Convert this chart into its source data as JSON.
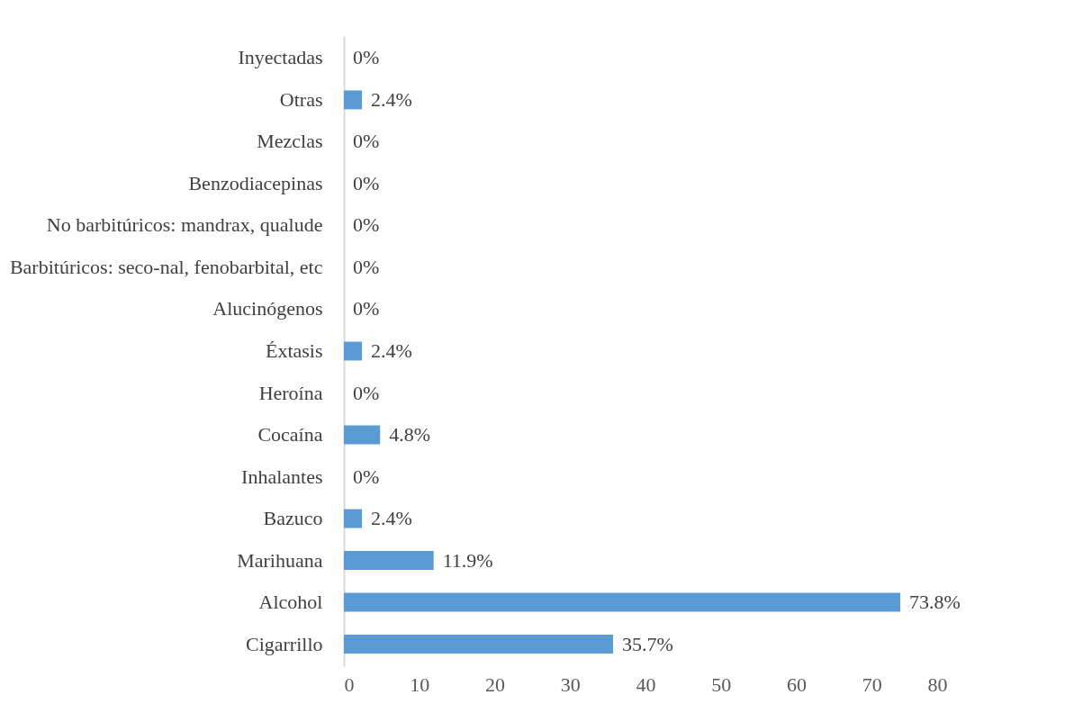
{
  "chart_data": {
    "type": "bar",
    "orientation": "horizontal",
    "categories": [
      "Inyectadas",
      "Otras",
      "Mezclas",
      "Benzodiacepinas",
      "No barbitúricos: mandrax, qualude",
      "Barbitúricos: seco-nal, fenobarbital, etc",
      "Alucinógenos",
      "Éxtasis",
      "Heroína",
      "Cocaína",
      "Inhalantes",
      "Bazuco",
      "Marihuana",
      "Alcohol",
      "Cigarrillo"
    ],
    "values": [
      0,
      2.4,
      0,
      0,
      0,
      0,
      0,
      2.4,
      0,
      4.8,
      0,
      2.4,
      11.9,
      73.8,
      35.7
    ],
    "value_labels": [
      "0%",
      "2.4%",
      "0%",
      "0%",
      "0%",
      "0%",
      "0%",
      "2.4%",
      "0%",
      "4.8%",
      "0%",
      "2.4%",
      "11.9%",
      "73.8%",
      "35.7%"
    ],
    "color": "#5b9bd5",
    "xlim": [
      0,
      80
    ],
    "xticks": [
      0,
      10,
      20,
      30,
      40,
      50,
      60,
      70,
      80
    ]
  }
}
